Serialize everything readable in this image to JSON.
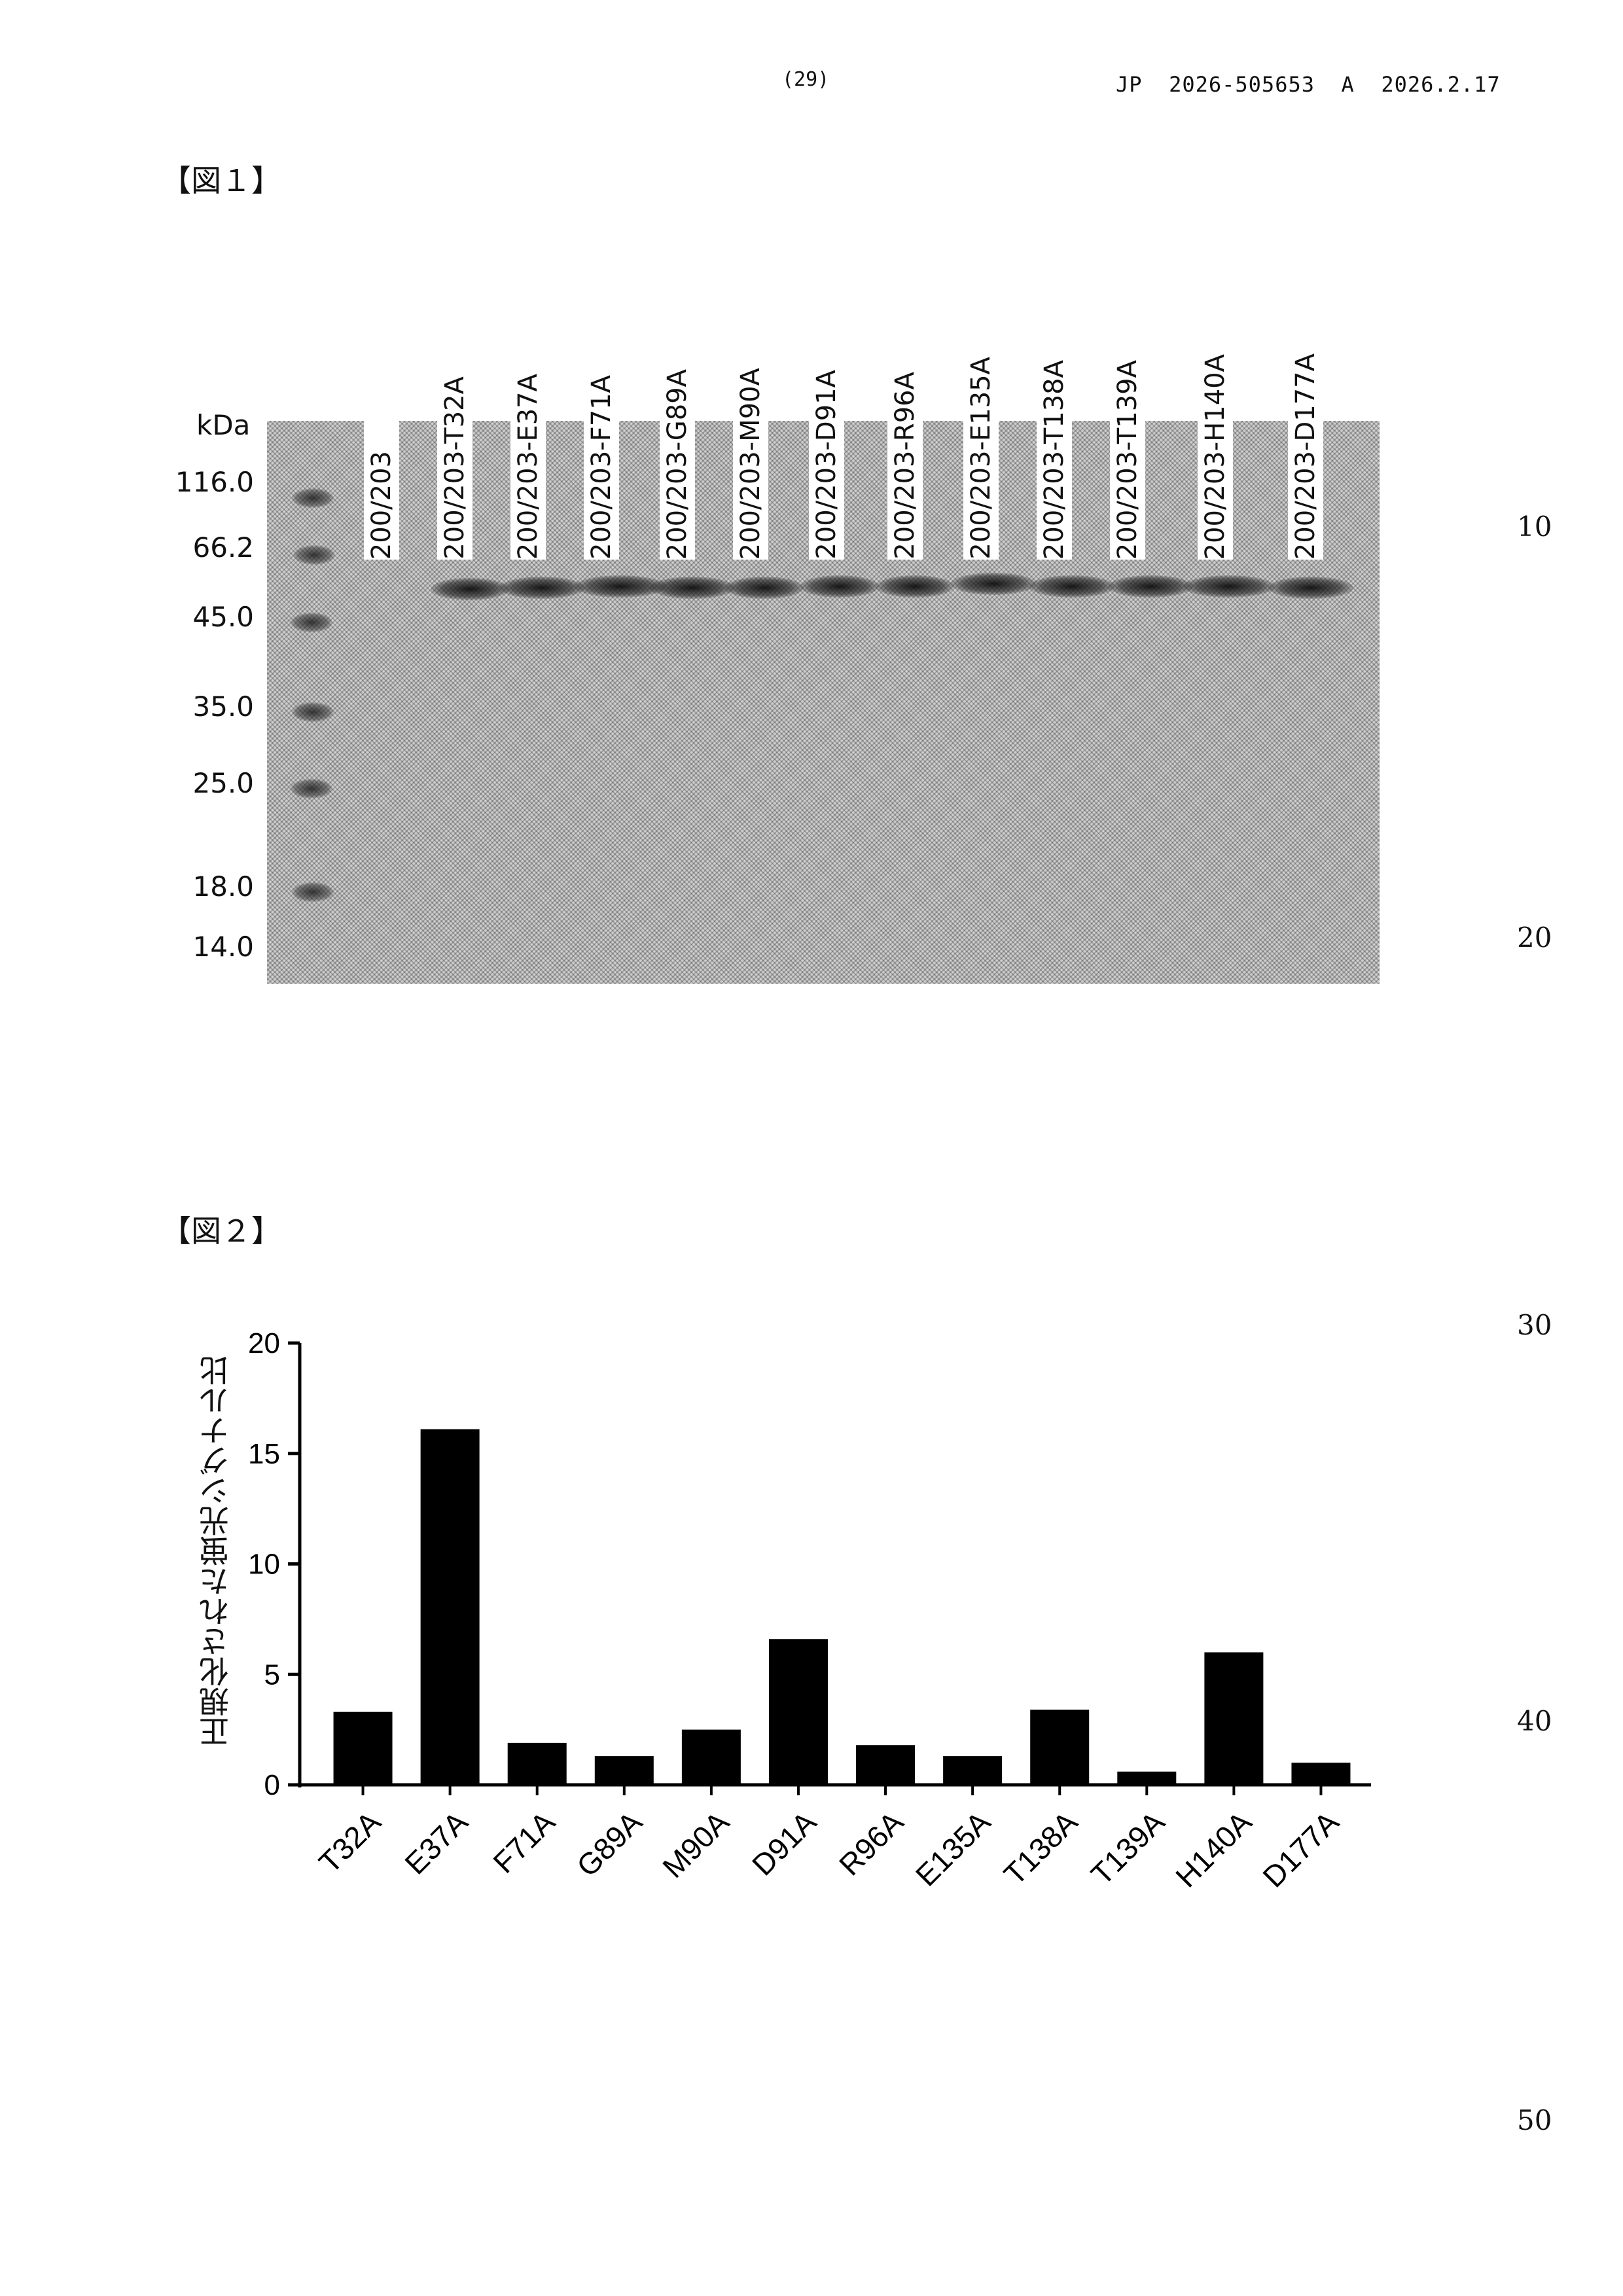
{
  "header": {
    "page_number": "(29)",
    "publication": "JP  2026-505653  A  2026.2.17"
  },
  "figure1": {
    "label": "【図１】",
    "unit_label": "kDa",
    "markers": [
      "116.0",
      "66.2",
      "45.0",
      "35.0",
      "25.0",
      "18.0",
      "14.0"
    ],
    "lanes": [
      "200/203",
      "200/203-T32A",
      "200/203-E37A",
      "200/203-F71A",
      "200/203-G89A",
      "200/203-M90A",
      "200/203-D91A",
      "200/203-R96A",
      "200/203-E135A",
      "200/203-T138A",
      "200/203-T139A",
      "200/203-H140A",
      "200/203-D177A"
    ]
  },
  "figure2": {
    "label": "【図２】"
  },
  "chart_data": {
    "type": "bar",
    "categories": [
      "T32A",
      "E37A",
      "F71A",
      "G89A",
      "M90A",
      "D91A",
      "R96A",
      "E135A",
      "T138A",
      "T139A",
      "H140A",
      "D177A"
    ],
    "values": [
      3.3,
      16.1,
      1.9,
      1.3,
      2.5,
      6.6,
      1.8,
      1.3,
      3.4,
      0.6,
      6.0,
      1.0
    ],
    "ylabel": "正規化された蛍光シグナル比",
    "ylim": [
      0,
      20
    ],
    "yticks": [
      "0",
      "5",
      "10",
      "15",
      "20"
    ],
    "bar_color": "#000000",
    "grid": false,
    "legend": "none"
  },
  "line_numbers": [
    "10",
    "20",
    "30",
    "40",
    "50"
  ]
}
